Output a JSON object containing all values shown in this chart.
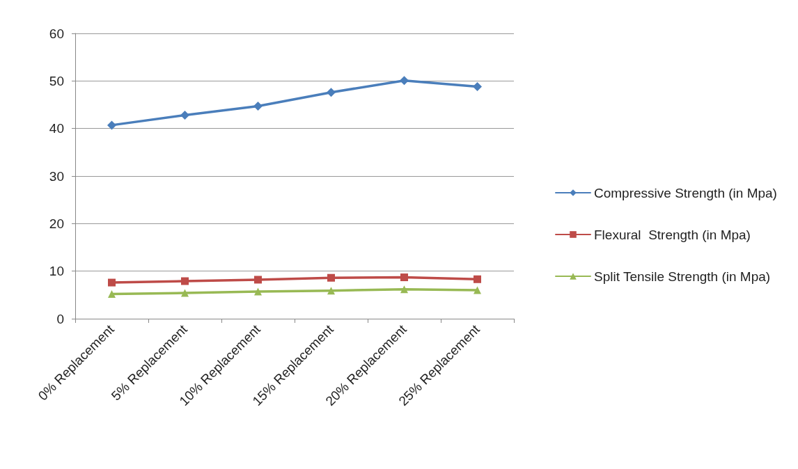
{
  "chart_data": {
    "type": "line",
    "categories": [
      "0% Replacement",
      "5% Replacement",
      "10% Replacement",
      "15% Replacement",
      "20% Replacement",
      "25% Replacement"
    ],
    "series": [
      {
        "name": "Compressive Strength (in Mpa)",
        "color": "#4a7ebb",
        "marker": "diamond",
        "values": [
          40.7,
          42.8,
          44.7,
          47.6,
          50.1,
          48.8
        ]
      },
      {
        "name": "Flexural  Strength (in Mpa)",
        "color": "#be4b48",
        "marker": "square",
        "values": [
          7.6,
          7.9,
          8.2,
          8.6,
          8.7,
          8.3
        ]
      },
      {
        "name": "Split Tensile Strength (in Mpa)",
        "color": "#98b954",
        "marker": "triangle",
        "values": [
          5.2,
          5.4,
          5.7,
          5.9,
          6.2,
          6.0
        ]
      }
    ],
    "ylim": [
      0,
      60
    ],
    "yticks": [
      0,
      10,
      20,
      30,
      40,
      50,
      60
    ],
    "grid": "y",
    "legend": "right",
    "line_style": "solid"
  }
}
